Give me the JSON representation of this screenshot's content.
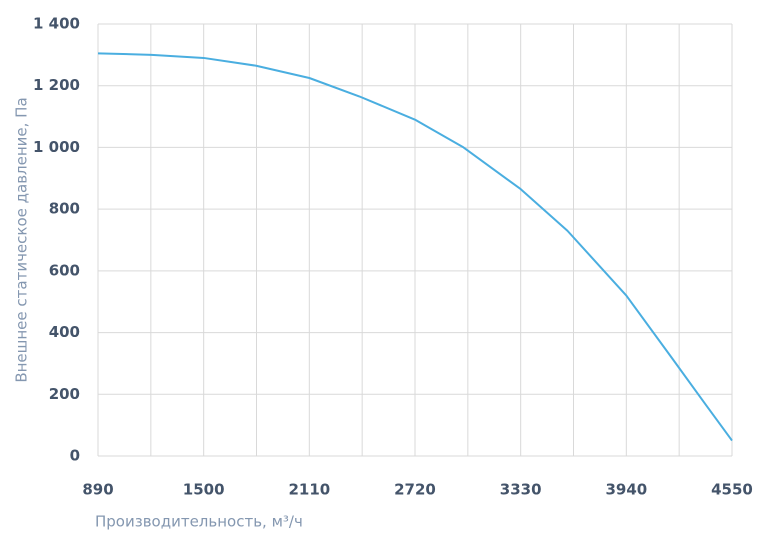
{
  "chart_data": {
    "type": "line",
    "x_label": "Производительность, м³/ч",
    "y_label": "Внешнее  статическое  давление, Па",
    "x": [
      890,
      1200,
      1500,
      1800,
      2110,
      2400,
      2720,
      3000,
      3330,
      3600,
      3940,
      4200,
      4400,
      4550
    ],
    "series": [
      {
        "color": "#4aaee0",
        "values": [
          1305,
          1300,
          1290,
          1265,
          1225,
          1165,
          1090,
          1000,
          865,
          730,
          520,
          320,
          165,
          50
        ]
      }
    ],
    "xlim": [
      890,
      4550
    ],
    "xticks": [
      890,
      1500,
      2110,
      2720,
      3330,
      3940,
      4550
    ],
    "xminorticks": [
      1195,
      1805,
      2415,
      3025,
      3635,
      4245
    ],
    "ylim": [
      0,
      1400
    ],
    "yticks": [
      0,
      200,
      400,
      600,
      800,
      {
        "value": 1000,
        "label": "1 000"
      },
      {
        "value": 1200,
        "label": "1 200"
      },
      {
        "value": 1400,
        "label": "1 400"
      }
    ],
    "grid": true
  }
}
